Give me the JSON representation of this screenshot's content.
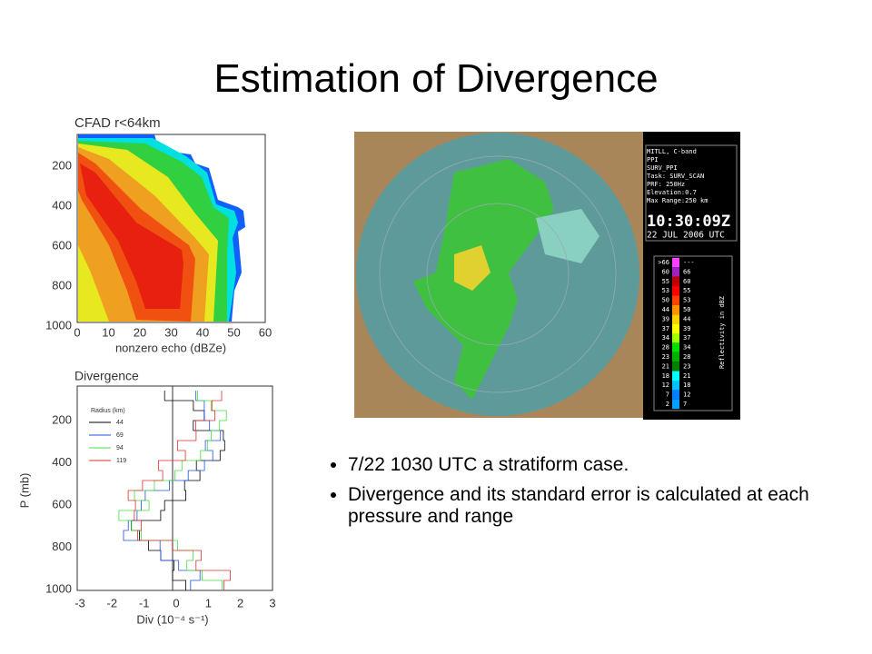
{
  "title": "Estimation of Divergence",
  "bullets": [
    "7/22 1030 UTC a stratiform case.",
    "Divergence and its standard error is calculated at each pressure and range"
  ],
  "cfad": {
    "title": "CFAD r<64km",
    "xlabel": "nonzero echo (dBZe)",
    "xticks": [
      0,
      10,
      20,
      30,
      40,
      50,
      60
    ],
    "yticks": [
      200,
      400,
      600,
      800,
      1000
    ]
  },
  "divergence": {
    "title": "Divergence",
    "xlabel": "Div (10⁻⁴ s⁻¹)",
    "ylabel": "P (mb)",
    "xticks": [
      -3,
      -2,
      -1,
      0,
      1,
      2,
      3
    ],
    "yticks": [
      200,
      400,
      600,
      800,
      1000
    ],
    "legend_title": "Radius (km)",
    "legend": [
      {
        "name": "44",
        "color": "#000000"
      },
      {
        "name": "69",
        "color": "#2050e0"
      },
      {
        "name": "94",
        "color": "#40e040"
      },
      {
        "name": "119",
        "color": "#e03030"
      }
    ]
  },
  "radar": {
    "info": [
      "MITLL, C-band",
      "PPI",
      "SURV_PPI",
      "Task: SURV_SCAN",
      "PRF: 250Hz",
      "Elevation:0.7",
      "Max Range:250 km"
    ],
    "time": "10:30:09Z",
    "date": "22 JUL 2006 UTC",
    "scale_label": "Reflectivity in dBZ",
    "scale_left": [
      ">66",
      "60",
      "55",
      "53",
      "50",
      "44",
      "39",
      "37",
      "34",
      "28",
      "23",
      "21",
      "18",
      "12",
      "7",
      "2"
    ],
    "scale_right": [
      "---",
      "66",
      "60",
      "55",
      "53",
      "50",
      "44",
      "39",
      "37",
      "34",
      "28",
      "23",
      "21",
      "18",
      "12",
      "7"
    ]
  }
}
